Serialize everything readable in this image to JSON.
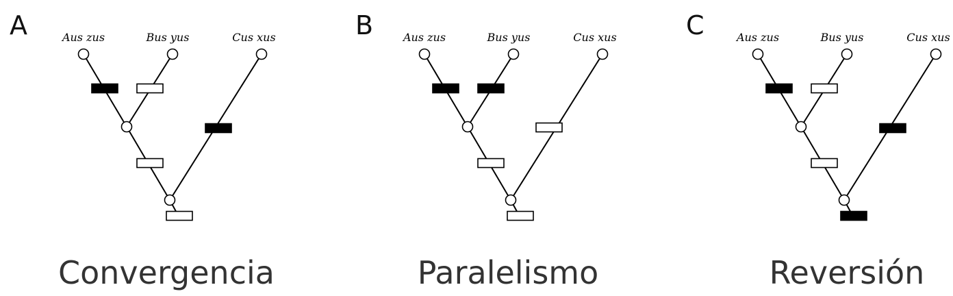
{
  "colors": {
    "derived_state": "#000000",
    "ancestral_state": "#ffffff",
    "line": "#000000",
    "caption_text": "#333333"
  },
  "panels": [
    {
      "letter": "A",
      "caption": "Convergencia",
      "taxa": [
        "Aus zus",
        "Bus yus",
        "Cus xus"
      ],
      "character_states": {
        "aus_zus_branch": "filled",
        "bus_yus_branch": "empty",
        "inner_branch": "empty",
        "cus_xus_branch": "filled",
        "root_branch": "empty"
      }
    },
    {
      "letter": "B",
      "caption": "Paralelismo",
      "taxa": [
        "Aus zus",
        "Bus yus",
        "Cus xus"
      ],
      "character_states": {
        "aus_zus_branch": "filled",
        "bus_yus_branch": "filled",
        "inner_branch": "empty",
        "cus_xus_branch": "empty",
        "root_branch": "empty"
      }
    },
    {
      "letter": "C",
      "caption": "Reversión",
      "taxa": [
        "Aus zus",
        "Bus yus",
        "Cus xus"
      ],
      "character_states": {
        "aus_zus_branch": "filled",
        "bus_yus_branch": "empty",
        "inner_branch": "empty",
        "cus_xus_branch": "filled",
        "root_branch": "filled"
      }
    }
  ]
}
